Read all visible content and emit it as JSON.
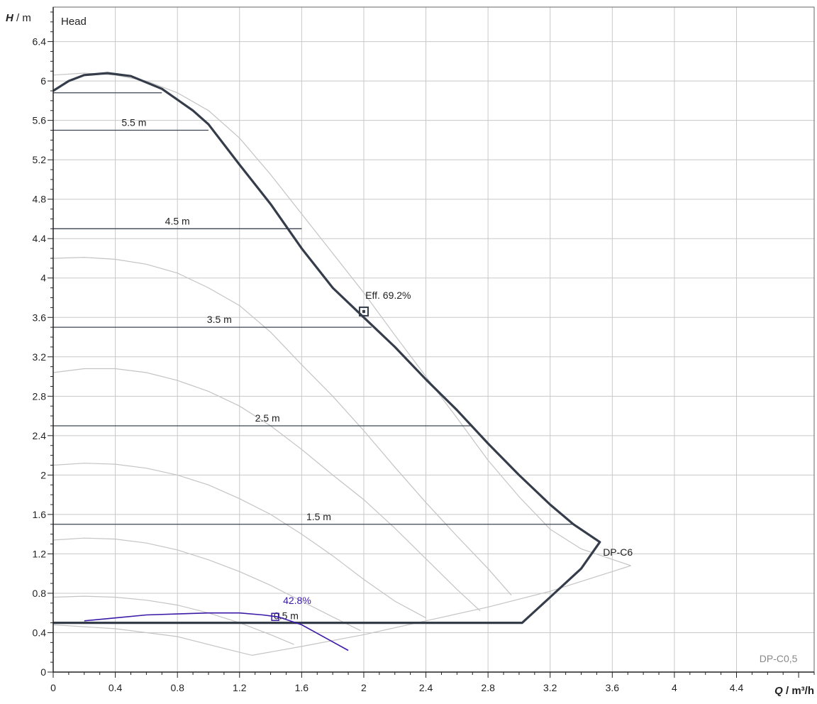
{
  "chart_data": {
    "type": "line",
    "title": "Head",
    "ylabel_var": "H",
    "ylabel_unit": " / m",
    "xlabel_var": "Q",
    "xlabel_unit": " / m³/h",
    "xlim": [
      0,
      4.9
    ],
    "ylim": [
      0,
      6.75
    ],
    "x_ticks": [
      "0",
      "0.4",
      "0.8",
      "1.2",
      "1.6",
      "2",
      "2.4",
      "2.8",
      "3.2",
      "3.6",
      "4",
      "4.4"
    ],
    "x_tick_values": [
      0,
      0.4,
      0.8,
      1.2,
      1.6,
      2,
      2.4,
      2.8,
      3.2,
      3.6,
      4,
      4.4
    ],
    "y_ticks": [
      "0",
      "0.4",
      "0.8",
      "1.2",
      "1.6",
      "2",
      "2.4",
      "2.8",
      "3.2",
      "3.6",
      "4",
      "4.4",
      "4.8",
      "5.2",
      "5.6",
      "6",
      "6.4"
    ],
    "y_tick_values": [
      0,
      0.4,
      0.8,
      1.2,
      1.6,
      2,
      2.4,
      2.8,
      3.2,
      3.6,
      4,
      4.4,
      4.8,
      5.2,
      5.6,
      6,
      6.4
    ],
    "grid": true,
    "colors": {
      "main_curve": "#353c4a",
      "thin_curves": "#c4c4c4",
      "grid": "#c8c8c8",
      "hlines": "#3d4452",
      "low_curve": "#3b1aa8",
      "text": "#222222",
      "watermark": "#888888"
    },
    "series": [
      {
        "name": "DP-C6",
        "points": [
          [
            0,
            5.9
          ],
          [
            0.1,
            6.0
          ],
          [
            0.2,
            6.06
          ],
          [
            0.35,
            6.08
          ],
          [
            0.5,
            6.05
          ],
          [
            0.7,
            5.92
          ],
          [
            0.9,
            5.7
          ],
          [
            1.0,
            5.56
          ],
          [
            1.2,
            5.15
          ],
          [
            1.4,
            4.75
          ],
          [
            1.6,
            4.3
          ],
          [
            1.8,
            3.9
          ],
          [
            2.0,
            3.6
          ],
          [
            2.2,
            3.3
          ],
          [
            2.4,
            2.97
          ],
          [
            2.6,
            2.66
          ],
          [
            2.8,
            2.32
          ],
          [
            3.0,
            2.0
          ],
          [
            3.2,
            1.7
          ],
          [
            3.35,
            1.5
          ],
          [
            3.52,
            1.32
          ],
          [
            3.4,
            1.05
          ],
          [
            3.2,
            0.76
          ],
          [
            3.02,
            0.5
          ],
          [
            0,
            0.5
          ]
        ]
      },
      {
        "name": "DP-C0,5",
        "points": [
          [
            0.2,
            0.52
          ],
          [
            0.4,
            0.55
          ],
          [
            0.6,
            0.58
          ],
          [
            0.8,
            0.59
          ],
          [
            1.0,
            0.6
          ],
          [
            1.2,
            0.6
          ],
          [
            1.35,
            0.58
          ],
          [
            1.45,
            0.56
          ],
          [
            1.6,
            0.48
          ],
          [
            1.75,
            0.35
          ],
          [
            1.9,
            0.22
          ]
        ]
      }
    ],
    "max_curve": [
      [
        0,
        6.06
      ],
      [
        0.2,
        6.08
      ],
      [
        0.4,
        6.06
      ],
      [
        0.6,
        6.0
      ],
      [
        0.8,
        5.88
      ],
      [
        1.0,
        5.7
      ],
      [
        1.2,
        5.42
      ],
      [
        1.4,
        5.05
      ],
      [
        1.6,
        4.65
      ],
      [
        1.8,
        4.25
      ],
      [
        2.0,
        3.85
      ],
      [
        2.2,
        3.42
      ],
      [
        2.4,
        3.0
      ],
      [
        2.6,
        2.58
      ],
      [
        2.8,
        2.15
      ],
      [
        3.0,
        1.78
      ],
      [
        3.2,
        1.45
      ],
      [
        3.4,
        1.25
      ],
      [
        3.72,
        1.08
      ]
    ],
    "speed_curves": [
      [
        [
          0,
          4.2
        ],
        [
          0.2,
          4.21
        ],
        [
          0.4,
          4.19
        ],
        [
          0.6,
          4.14
        ],
        [
          0.8,
          4.05
        ],
        [
          1.0,
          3.9
        ],
        [
          1.2,
          3.72
        ],
        [
          1.4,
          3.45
        ],
        [
          1.6,
          3.12
        ],
        [
          1.8,
          2.8
        ],
        [
          2.0,
          2.45
        ],
        [
          2.2,
          2.08
        ],
        [
          2.4,
          1.72
        ],
        [
          2.6,
          1.38
        ],
        [
          2.8,
          1.05
        ],
        [
          2.95,
          0.78
        ]
      ],
      [
        [
          0,
          3.04
        ],
        [
          0.2,
          3.08
        ],
        [
          0.4,
          3.08
        ],
        [
          0.6,
          3.04
        ],
        [
          0.8,
          2.96
        ],
        [
          1.0,
          2.85
        ],
        [
          1.2,
          2.7
        ],
        [
          1.4,
          2.5
        ],
        [
          1.6,
          2.26
        ],
        [
          1.8,
          2.0
        ],
        [
          2.0,
          1.75
        ],
        [
          2.2,
          1.46
        ],
        [
          2.4,
          1.15
        ],
        [
          2.6,
          0.84
        ],
        [
          2.75,
          0.62
        ]
      ],
      [
        [
          0,
          2.1
        ],
        [
          0.2,
          2.12
        ],
        [
          0.4,
          2.11
        ],
        [
          0.6,
          2.07
        ],
        [
          0.8,
          2.0
        ],
        [
          1.0,
          1.9
        ],
        [
          1.2,
          1.76
        ],
        [
          1.4,
          1.6
        ],
        [
          1.6,
          1.4
        ],
        [
          1.8,
          1.18
        ],
        [
          2.0,
          0.94
        ],
        [
          2.2,
          0.72
        ],
        [
          2.4,
          0.55
        ]
      ],
      [
        [
          0,
          1.34
        ],
        [
          0.2,
          1.36
        ],
        [
          0.4,
          1.35
        ],
        [
          0.6,
          1.31
        ],
        [
          0.8,
          1.24
        ],
        [
          1.0,
          1.14
        ],
        [
          1.2,
          1.02
        ],
        [
          1.4,
          0.88
        ],
        [
          1.6,
          0.72
        ],
        [
          1.8,
          0.56
        ],
        [
          1.98,
          0.42
        ]
      ],
      [
        [
          0,
          0.76
        ],
        [
          0.2,
          0.77
        ],
        [
          0.4,
          0.76
        ],
        [
          0.6,
          0.73
        ],
        [
          0.8,
          0.68
        ],
        [
          1.0,
          0.6
        ],
        [
          1.2,
          0.5
        ],
        [
          1.4,
          0.38
        ],
        [
          1.55,
          0.28
        ]
      ]
    ],
    "lower_envelope": [
      [
        0,
        0.48
      ],
      [
        0.4,
        0.44
      ],
      [
        0.8,
        0.36
      ],
      [
        1.1,
        0.24
      ],
      [
        1.28,
        0.17
      ],
      [
        1.6,
        0.26
      ],
      [
        2.0,
        0.38
      ],
      [
        2.4,
        0.52
      ],
      [
        2.8,
        0.66
      ],
      [
        3.2,
        0.82
      ],
      [
        3.72,
        1.08
      ]
    ],
    "const_head_lines": [
      {
        "label": "5.5 m",
        "y": 5.5,
        "x_start": 0,
        "x_end": 1.0,
        "label_x": 0.52
      },
      {
        "label": "4.5 m",
        "y": 4.5,
        "x_start": 0,
        "x_end": 1.6,
        "label_x": 0.8
      },
      {
        "label": "3.5 m",
        "y": 3.5,
        "x_start": 0,
        "x_end": 2.05,
        "label_x": 1.07
      },
      {
        "label": "2.5 m",
        "y": 2.5,
        "x_start": 0,
        "x_end": 2.7,
        "label_x": 1.38
      },
      {
        "label": "1.5 m",
        "y": 1.5,
        "x_start": 0,
        "x_end": 3.35,
        "label_x": 1.71
      }
    ],
    "extra_hlines": [
      {
        "y": 5.88,
        "x_start": 0,
        "x_end": 0.7
      }
    ],
    "low_head_label": {
      "text": "0.5 m",
      "x": 1.5,
      "y": 0.55
    },
    "annotations": [
      {
        "text": "Eff.  69.2%",
        "x": 2.0,
        "y": 3.66,
        "label_dx": 0.01,
        "label_dy": 0.13,
        "marker": "square",
        "color": "#222222"
      },
      {
        "text": "42.8%",
        "x": 1.43,
        "y": 0.56,
        "label_dx": 0.05,
        "label_dy": 0.13,
        "marker": "small-square",
        "color": "#3b1aa8"
      },
      {
        "text": "DP-C6",
        "x": 3.54,
        "y": 1.18,
        "label_dx": 0,
        "label_dy": 0,
        "marker": "none",
        "color": "#222222"
      }
    ],
    "watermark": {
      "text": "DP-C0,5",
      "x": 4.67,
      "y": 0.1
    }
  }
}
